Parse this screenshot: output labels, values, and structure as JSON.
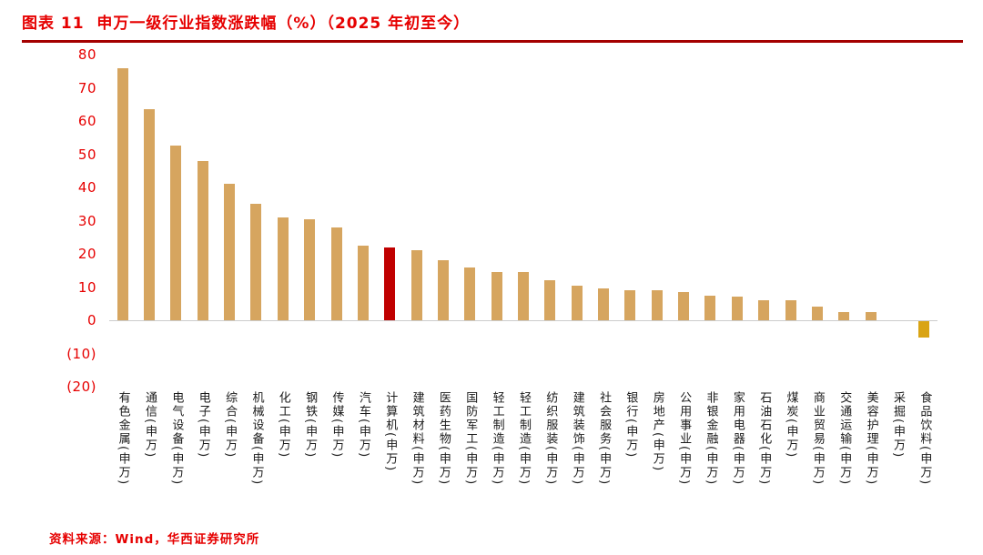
{
  "header": {
    "title": "图表 11  申万一级行业指数涨跌幅（%）（2025 年初至今）"
  },
  "footer": {
    "source_label": "资料来源：Wind，华西证券研究所"
  },
  "colors": {
    "title": "#e60000",
    "divider": "#a40000",
    "axis_labels": "#e60000",
    "source": "#e60000",
    "bar_default": "#d6a55f",
    "bar_highlight": "#c00000",
    "bar_negative": "#d9a414"
  },
  "chart_data": {
    "type": "bar",
    "title": "申万一级行业指数涨跌幅（%）（2025年初至今）",
    "xlabel": "",
    "ylabel": "",
    "ylim": [
      -20,
      80
    ],
    "grid": false,
    "legend": false,
    "categories": [
      "有色金属(申万)",
      "通信(申万)",
      "电气设备(申万)",
      "电子(申万)",
      "综合(申万)",
      "机械设备(申万)",
      "化工(申万)",
      "钢铁(申万)",
      "传媒(申万)",
      "汽车(申万)",
      "计算机(申万)",
      "建筑材料(申万)",
      "医药生物(申万)",
      "国防军工(申万)",
      "轻工制造(申万)",
      "轻工制造(申万)",
      "纺织服装(申万)",
      "建筑装饰(申万)",
      "社会服务(申万)",
      "银行(申万)",
      "房地产(申万)",
      "公用事业(申万)",
      "非银金融(申万)",
      "家用电器(申万)",
      "石油石化(申万)",
      "煤炭(申万)",
      "商业贸易(申万)",
      "交通运输(申万)",
      "美容护理(申万)",
      "采掘(申万)",
      "食品饮料(申万)"
    ],
    "values": [
      76,
      63.5,
      52.5,
      48,
      41,
      35,
      31,
      30.5,
      28,
      22.5,
      22,
      21,
      18,
      16,
      14.5,
      14.5,
      12,
      10.5,
      9.5,
      9,
      9,
      8.5,
      7.5,
      7,
      6,
      6,
      4,
      2.5,
      2.5,
      0,
      -5
    ],
    "bar_default_color": "#d6a55f",
    "bar_color_overrides": {
      "10": "#c00000",
      "30": "#d9a414"
    },
    "highlighted_category": "计算机(申万)",
    "yticks": [
      {
        "value": 80,
        "label": "80"
      },
      {
        "value": 70,
        "label": "70"
      },
      {
        "value": 60,
        "label": "60"
      },
      {
        "value": 50,
        "label": "50"
      },
      {
        "value": 40,
        "label": "40"
      },
      {
        "value": 30,
        "label": "30"
      },
      {
        "value": 20,
        "label": "20"
      },
      {
        "value": 10,
        "label": "10"
      },
      {
        "value": 0,
        "label": "0"
      },
      {
        "value": -10,
        "label": "(10)"
      },
      {
        "value": -20,
        "label": "(20)"
      }
    ]
  }
}
